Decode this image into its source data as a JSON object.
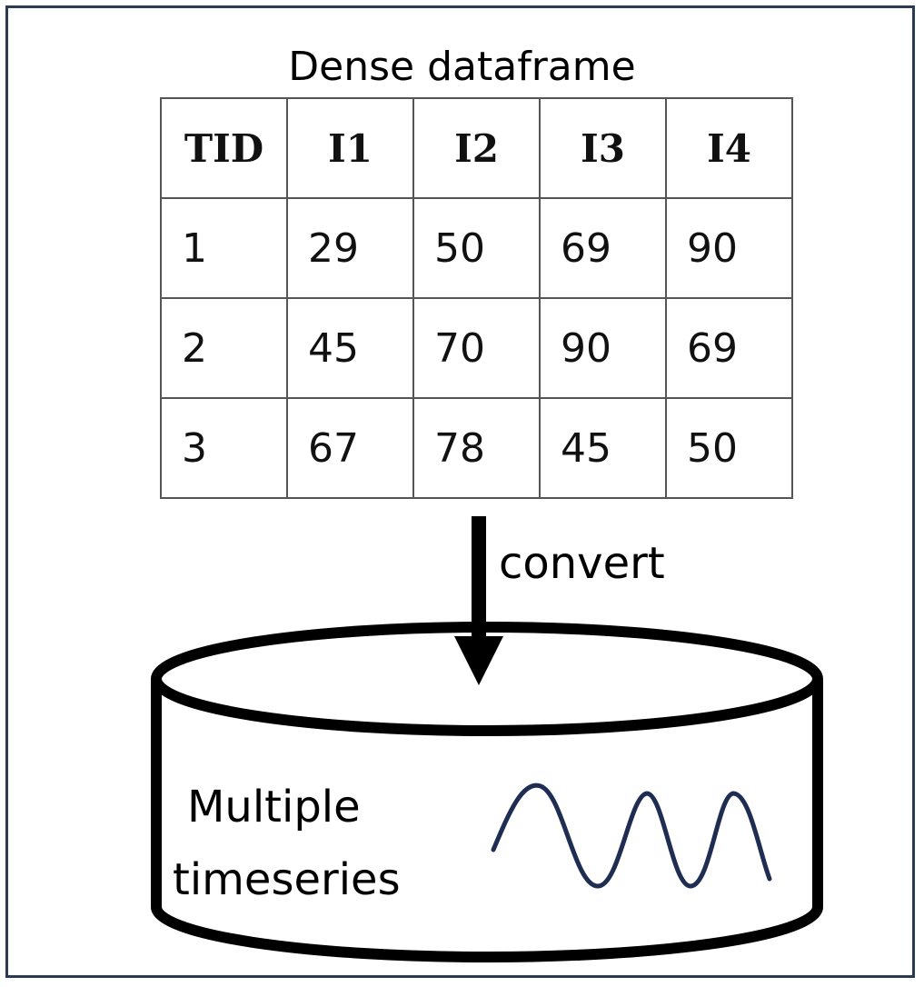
{
  "title": "Dense dataframe",
  "table": {
    "headers": [
      "TID",
      "I1",
      "I2",
      "I3",
      "I4"
    ],
    "rows": [
      [
        "1",
        "29",
        "50",
        "69",
        "90"
      ],
      [
        "2",
        "45",
        "70",
        "90",
        "69"
      ],
      [
        "3",
        "67",
        "78",
        "45",
        "50"
      ]
    ]
  },
  "arrow_label": "convert",
  "cylinder": {
    "label_line1": "Multiple",
    "label_line2": "timeseries"
  },
  "colors": {
    "frame": "#2b3a55",
    "wave": "#1f2d52",
    "stroke": "#000000"
  }
}
